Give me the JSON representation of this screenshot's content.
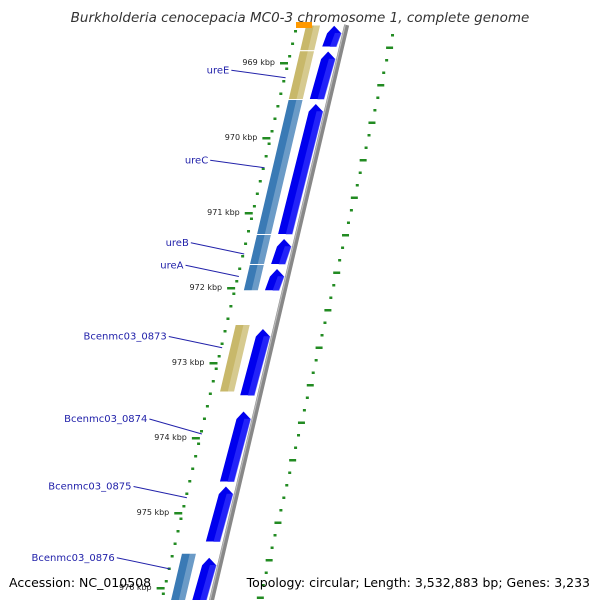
{
  "title": "Burkholderia cenocepacia MC0-3 chromosome 1, complete genome",
  "accession_text": "Accession: NC_010508",
  "topology_text": "Topology: circular; Length: 3,532,883 bp; Genes: 3,233",
  "colors": {
    "cds": "#0000ee",
    "cds_highlight": "#3a3aff",
    "gene_label": "#2222aa",
    "backbone": "#888888",
    "gc_dots": "#228b22",
    "tan_block": "#c8b86a",
    "steel_block": "#3a7ab5",
    "orange_block": "#ff9900",
    "grey_block": "#cccccc"
  },
  "ticks": [
    {
      "label": "969 kbp",
      "y": 0.6
    },
    {
      "label": "970 kbp",
      "y": 1.6
    },
    {
      "label": "971 kbp",
      "y": 2.6
    },
    {
      "label": "972 kbp",
      "y": 3.6
    },
    {
      "label": "973 kbp",
      "y": 4.6
    },
    {
      "label": "974 kbp",
      "y": 5.6
    },
    {
      "label": "975 kbp",
      "y": 6.6
    },
    {
      "label": "976 kbp",
      "y": 7.6
    }
  ],
  "genes": [
    {
      "name": "ureE",
      "label_y": 0.75,
      "line_to_y": 0.85
    },
    {
      "name": "ureC",
      "label_y": 1.95,
      "line_to_y": 2.05
    },
    {
      "name": "ureB",
      "label_y": 3.05,
      "line_to_y": 3.2
    },
    {
      "name": "ureA",
      "label_y": 3.35,
      "line_to_y": 3.5
    },
    {
      "name": "Bcenmc03_0873",
      "label_y": 4.3,
      "line_to_y": 4.45
    },
    {
      "name": "Bcenmc03_0874",
      "label_y": 5.4,
      "line_to_y": 5.6
    },
    {
      "name": "Bcenmc03_0875",
      "label_y": 6.3,
      "line_to_y": 6.45
    },
    {
      "name": "Bcenmc03_0876",
      "label_y": 7.25,
      "line_to_y": 7.4
    }
  ],
  "cds_features": [
    {
      "start": -0.3,
      "end": 0.4,
      "strand": "+"
    },
    {
      "start": 0.45,
      "end": 1.1,
      "strand": "+"
    },
    {
      "start": 1.15,
      "end": 2.9,
      "strand": "+"
    },
    {
      "start": 2.95,
      "end": 3.3,
      "strand": "+"
    },
    {
      "start": 3.35,
      "end": 3.65,
      "strand": "+"
    },
    {
      "start": 4.15,
      "end": 5.05,
      "strand": "+"
    },
    {
      "start": 5.25,
      "end": 6.2,
      "strand": "+"
    },
    {
      "start": 6.25,
      "end": 7.0,
      "strand": "+"
    },
    {
      "start": 7.2,
      "end": 7.95,
      "strand": "+"
    }
  ],
  "blocks": [
    {
      "start": -0.3,
      "end": 0.45,
      "kind": "tan"
    },
    {
      "start": 0.45,
      "end": 1.1,
      "kind": "tan"
    },
    {
      "start": 1.1,
      "end": 2.9,
      "kind": "steel"
    },
    {
      "start": 2.9,
      "end": 3.3,
      "kind": "steel"
    },
    {
      "start": 3.3,
      "end": 3.65,
      "kind": "steel"
    },
    {
      "start": 4.1,
      "end": 5.0,
      "kind": "tan"
    },
    {
      "start": 7.15,
      "end": 7.85,
      "kind": "steel"
    },
    {
      "start": 7.85,
      "end": 8.2,
      "kind": "grey"
    }
  ]
}
